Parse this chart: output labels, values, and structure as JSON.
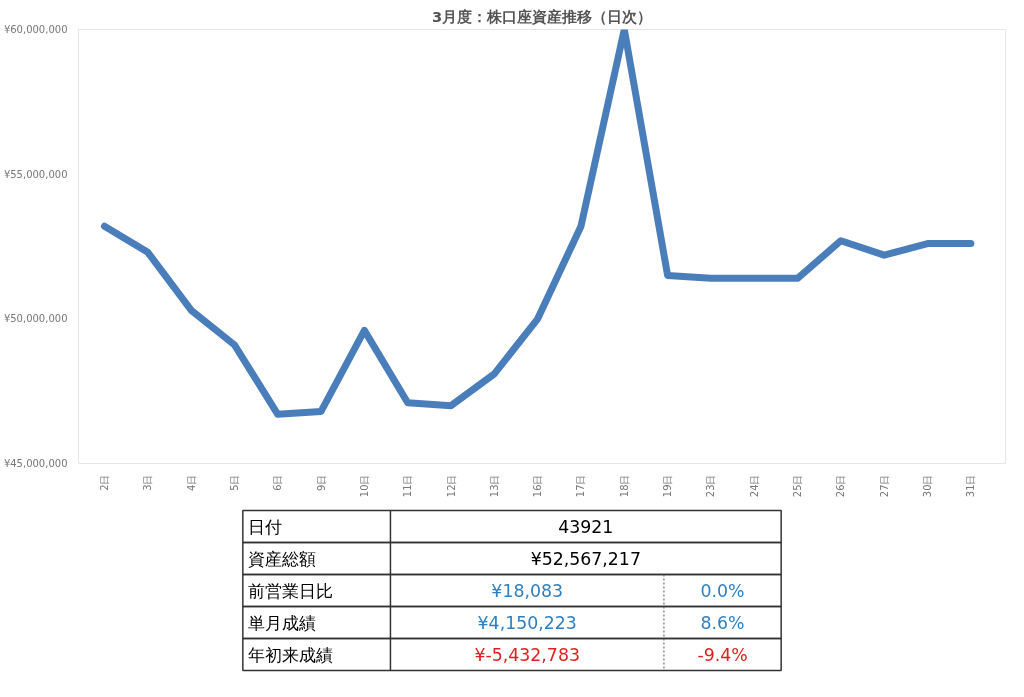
{
  "chart_data": [
    {
      "type": "line",
      "title": "3月度：株口座資産推移（日次）",
      "categories": [
        "2日",
        "3日",
        "4日",
        "5日",
        "6日",
        "9日",
        "10日",
        "11日",
        "12日",
        "13日",
        "16日",
        "17日",
        "18日",
        "19日",
        "23日",
        "24日",
        "25日",
        "26日",
        "27日",
        "30日",
        "31日"
      ],
      "series": [
        {
          "color": "#4a7ebb",
          "values": [
            53200000,
            52300000,
            50300000,
            49100000,
            46700000,
            46800000,
            49600000,
            47100000,
            47000000,
            48100000,
            50000000,
            53200000,
            60000000,
            51500000,
            51400000,
            51400000,
            51400000,
            52700000,
            52200000,
            52600000,
            52600000
          ]
        }
      ],
      "ylim": [
        45000000,
        60000000
      ],
      "yticks": [
        {
          "value": 45000000,
          "label": "¥45,000,000"
        },
        {
          "value": 50000000,
          "label": "¥50,000,000"
        },
        {
          "value": 55000000,
          "label": "¥55,000,000"
        },
        {
          "value": 60000000,
          "label": "¥60,000,000"
        }
      ],
      "grid": false,
      "marker": "none",
      "line_style": "solid"
    },
    {
      "type": "other",
      "annotations": [
        "日付",
        "43921",
        "資産総額",
        "¥52,567,217",
        "前営業日比",
        "¥18,083",
        "0.0%",
        "単月成績",
        "¥4,150,223",
        "8.6%",
        "年初来成績",
        "¥-5,432,783",
        "-9.4%"
      ],
      "colors": [
        "#000000",
        "#000000",
        "#000000",
        "#000000",
        "#000000",
        "#2f7fc1",
        "#2f7fc1",
        "#000000",
        "#2f7fc1",
        "#2f7fc1",
        "#000000",
        "#e02020",
        "#e02020"
      ]
    }
  ]
}
